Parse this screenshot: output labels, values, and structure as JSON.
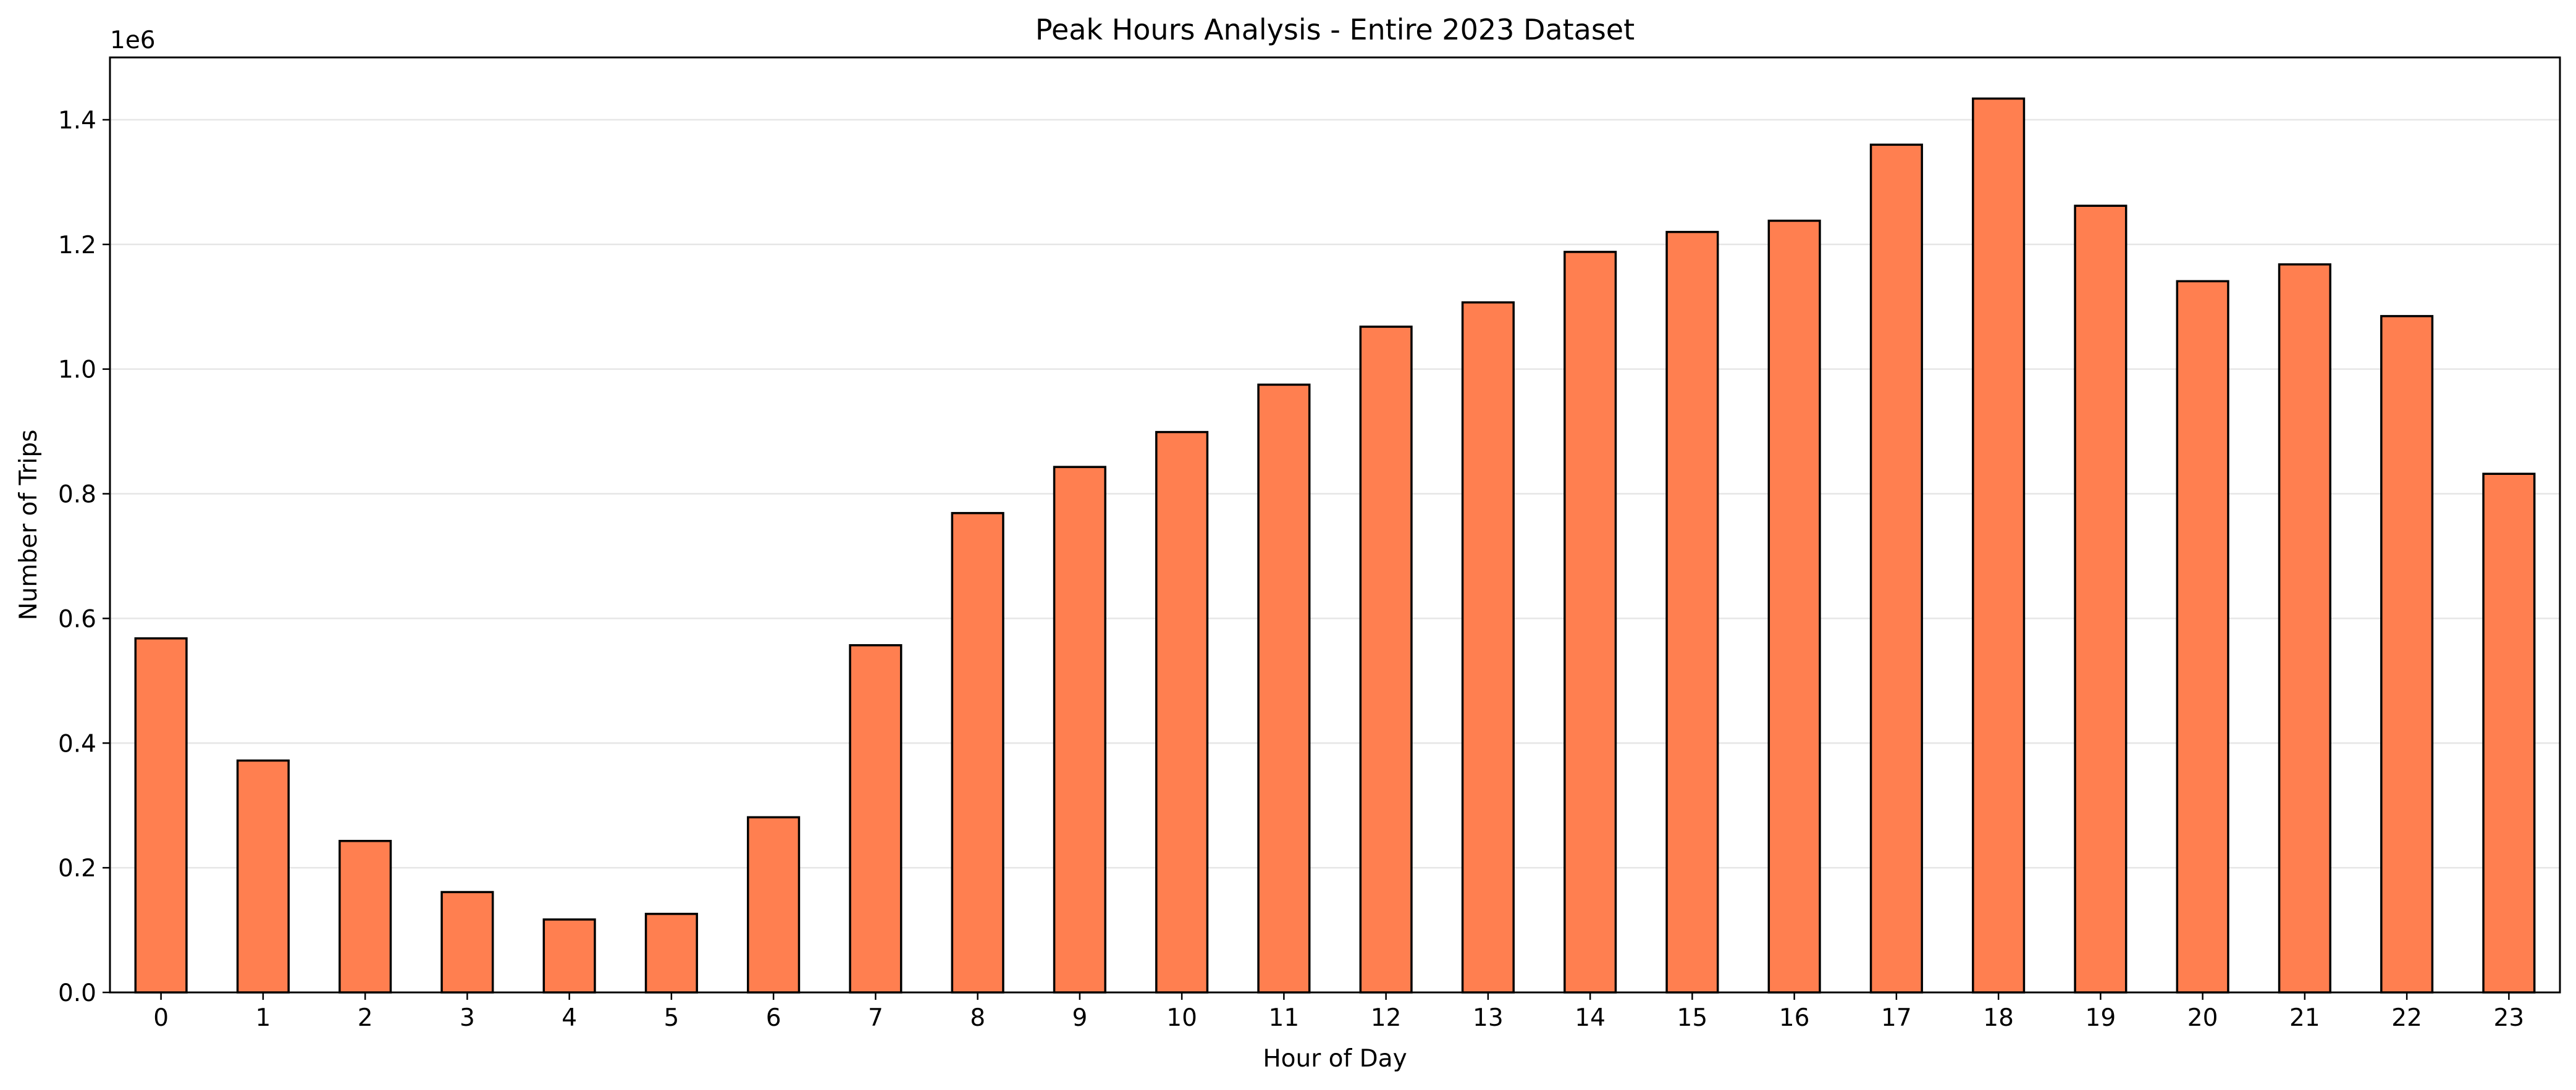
{
  "chart_data": {
    "type": "bar",
    "title": "Peak Hours Analysis - Entire 2023 Dataset",
    "xlabel": "Hour of Day",
    "ylabel": "Number of Trips",
    "y_offset_label": "1e6",
    "y_scale": 1000000,
    "categories": [
      "0",
      "1",
      "2",
      "3",
      "4",
      "5",
      "6",
      "7",
      "8",
      "9",
      "10",
      "11",
      "12",
      "13",
      "14",
      "15",
      "16",
      "17",
      "18",
      "19",
      "20",
      "21",
      "22",
      "23"
    ],
    "values": [
      568000,
      372000,
      243000,
      161000,
      117000,
      126000,
      281000,
      557000,
      769000,
      843000,
      899000,
      975000,
      1068000,
      1107000,
      1188000,
      1220000,
      1238000,
      1360000,
      1434000,
      1262000,
      1141000,
      1168000,
      1085000,
      832000
    ],
    "ylim": [
      0,
      1500000
    ],
    "yticks": [
      0,
      200000,
      400000,
      600000,
      800000,
      1000000,
      1200000,
      1400000
    ],
    "ytick_labels": [
      "0.0",
      "0.2",
      "0.4",
      "0.6",
      "0.8",
      "1.0",
      "1.2",
      "1.4"
    ],
    "grid": "y",
    "legend": "none",
    "bar_color": "#ff7f50",
    "bar_edge_color": "#000000",
    "grid_color": "#e6e6e6"
  }
}
